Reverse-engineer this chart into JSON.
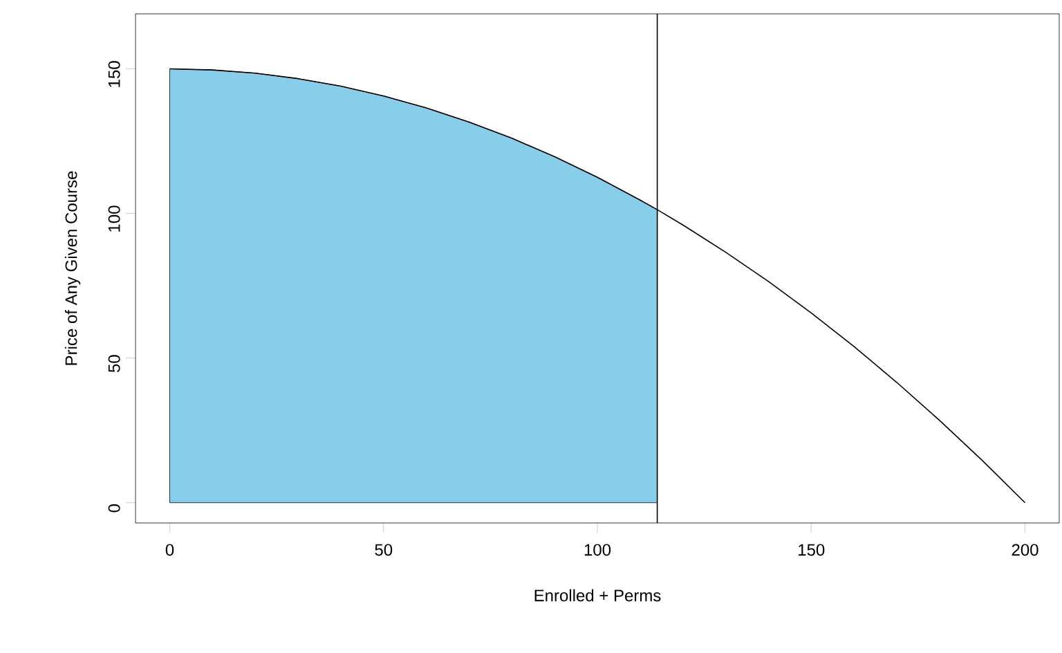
{
  "chart_data": {
    "type": "line",
    "xlabel": "Enrolled + Perms",
    "ylabel": "Price of Any Given Course",
    "xlim": [
      -8,
      208
    ],
    "ylim": [
      -7,
      169
    ],
    "xticks": [
      0,
      50,
      100,
      150,
      200
    ],
    "yticks": [
      0,
      50,
      100,
      150
    ],
    "series": [
      {
        "type": "area",
        "color": "#87ceeb",
        "x": [
          0,
          10,
          20,
          30,
          40,
          50,
          60,
          70,
          80,
          90,
          100,
          110,
          114
        ],
        "values": [
          150,
          149.6,
          148.5,
          146.6,
          144,
          140.6,
          136.5,
          131.6,
          126,
          119.6,
          112.5,
          104.6,
          101.3
        ]
      },
      {
        "color": "#000000",
        "x": [
          0,
          10,
          20,
          30,
          40,
          50,
          60,
          70,
          80,
          90,
          100,
          110,
          114,
          120,
          130,
          140,
          150,
          160,
          170,
          180,
          190,
          200
        ],
        "values": [
          150,
          149.6,
          148.5,
          146.6,
          144,
          140.6,
          136.5,
          131.6,
          126,
          119.6,
          112.5,
          104.6,
          101.3,
          96,
          86.6,
          76.5,
          65.6,
          54,
          41.6,
          28.5,
          14.6,
          0
        ]
      }
    ],
    "ref_lines": [
      {
        "axis": "x",
        "value": 114,
        "color": "#000000"
      }
    ]
  }
}
